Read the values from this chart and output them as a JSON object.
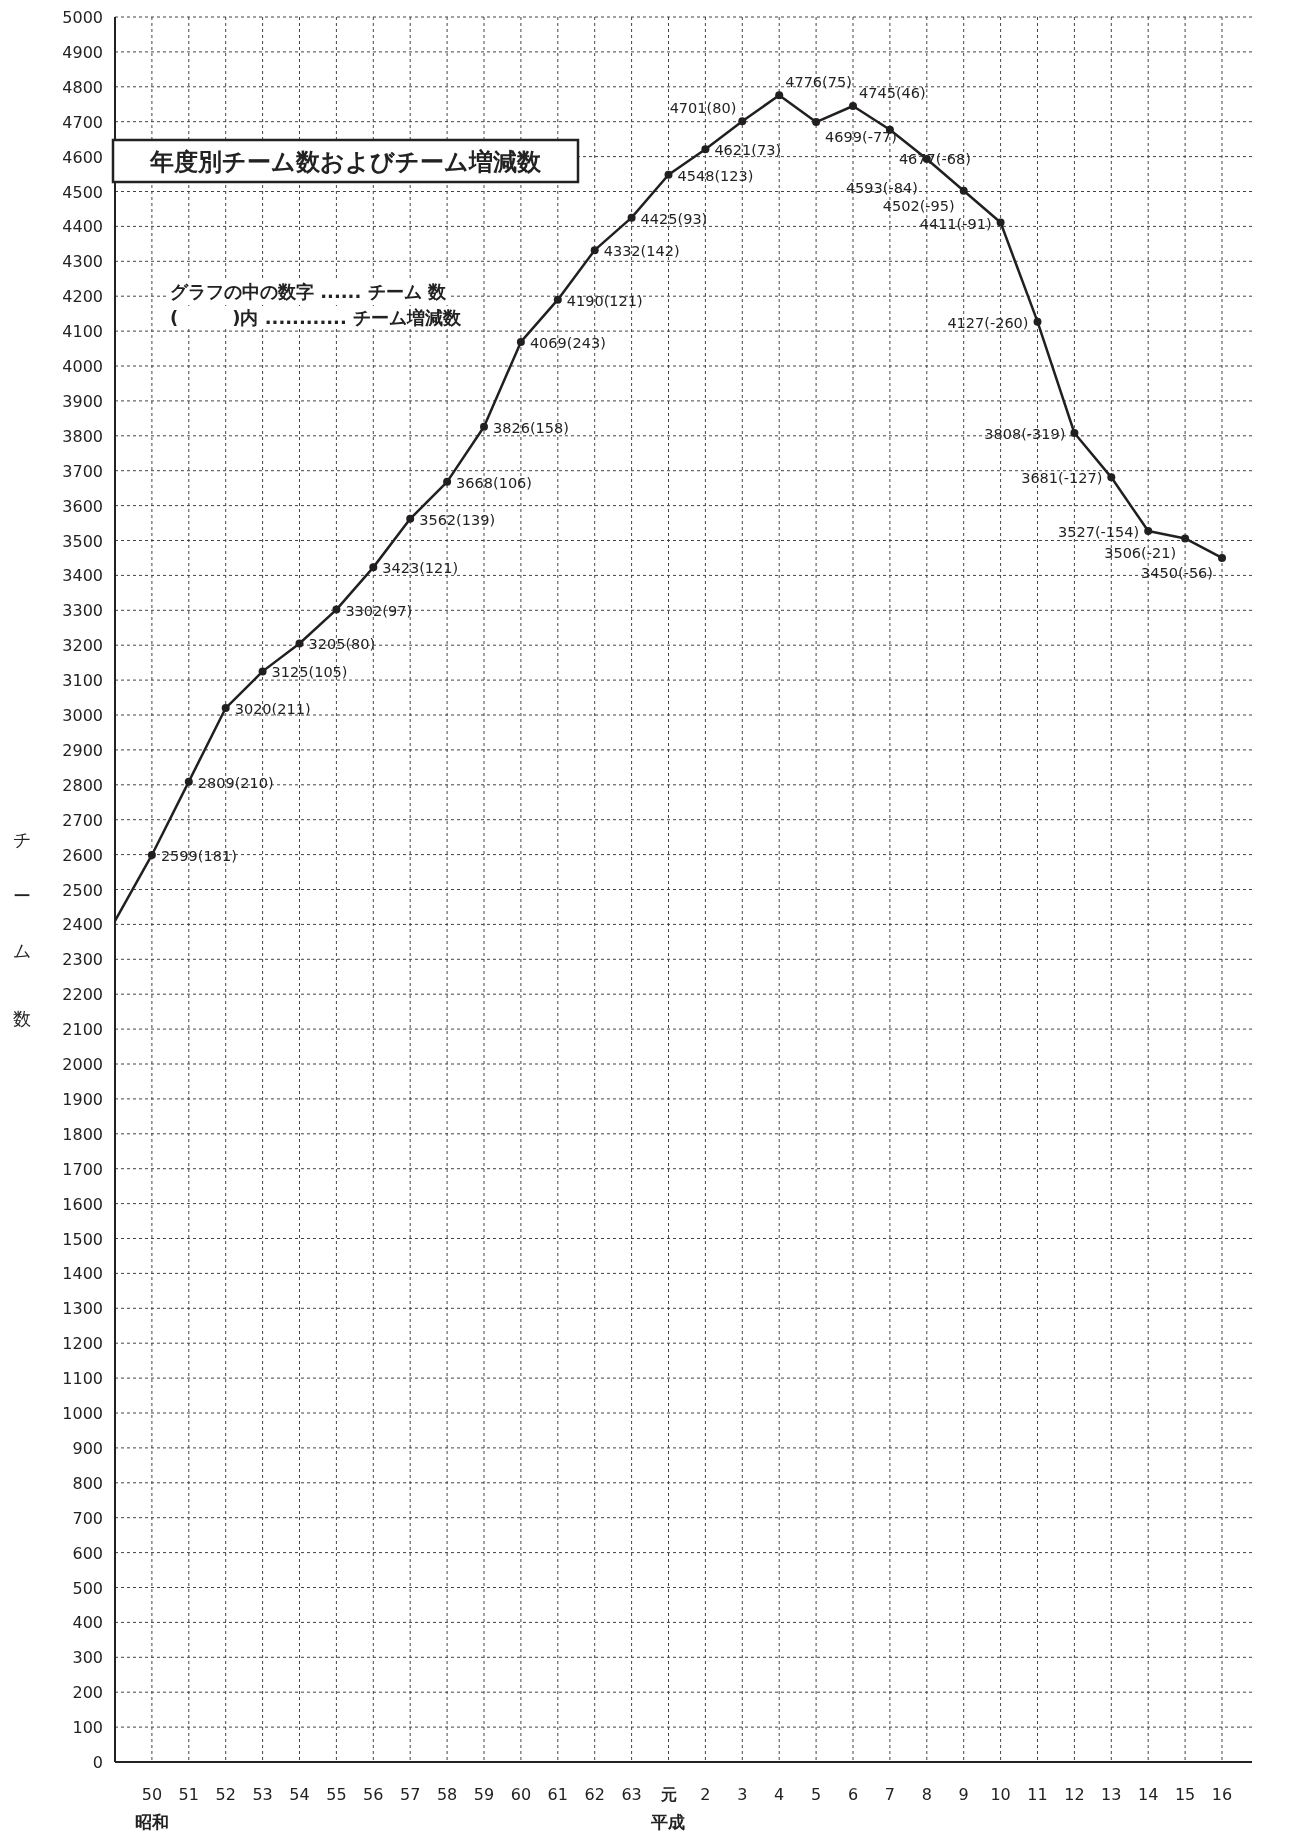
{
  "chart_data": {
    "type": "line",
    "title": "年度別チーム数およびチーム増減数",
    "ylabel": "チーム数",
    "categories": [
      null,
      "50",
      "51",
      "52",
      "53",
      "54",
      "55",
      "56",
      "57",
      "58",
      "59",
      "60",
      "61",
      "62",
      "63",
      "元",
      "2",
      "3",
      "4",
      "5",
      "6",
      "7",
      "8",
      "9",
      "10",
      "11",
      "12",
      "13",
      "14",
      "15",
      "16"
    ],
    "series": [
      {
        "color": "#231f20",
        "values": [
          2410,
          2599,
          2809,
          3020,
          3125,
          3205,
          3302,
          3423,
          3562,
          3668,
          3826,
          4069,
          4190,
          4332,
          4425,
          4548,
          4621,
          4701,
          4776,
          4699,
          4745,
          4677,
          4593,
          4502,
          4411,
          4127,
          3808,
          3681,
          3527,
          3506,
          3450
        ],
        "value_labels": [
          null,
          "2599(181)",
          "2809(210)",
          "3020(211)",
          "3125(105)",
          "3205(80)",
          "3302(97)",
          "3423(121)",
          "3562(139)",
          "3668(106)",
          "3826(158)",
          "4069(243)",
          "4190(121)",
          "4332(142)",
          "4425(93)",
          "4548(123)",
          "4621(73)",
          "4701(80)",
          "4776(75)",
          "4699(-77)",
          "4745(46)",
          "4677(-68)",
          "4593(-84)",
          "4502(-95)",
          "4411(-91)",
          "4127(-260)",
          "3808(-319)",
          "3681(-127)",
          "3527(-154)",
          "3506(-21)",
          "3450(-56)"
        ]
      }
    ],
    "ylim": [
      0,
      5000
    ],
    "yticks": [
      0,
      100,
      200,
      300,
      400,
      500,
      600,
      700,
      800,
      900,
      1000,
      1100,
      1200,
      1300,
      1400,
      1500,
      1600,
      1700,
      1800,
      1900,
      2000,
      2100,
      2200,
      2300,
      2400,
      2500,
      2600,
      2700,
      2800,
      2900,
      3000,
      3100,
      3200,
      3300,
      3400,
      3500,
      3600,
      3700,
      3800,
      3900,
      4000,
      4100,
      4200,
      4300,
      4400,
      4500,
      4600,
      4700,
      4800,
      4900,
      5000
    ],
    "grid": true,
    "marker": "circle",
    "line_style": "solid",
    "annotations": [
      "グラフの中の数字 ...... チーム 数",
      "(　　　)内 ............ チーム増減数",
      "昭和",
      "平成"
    ]
  }
}
